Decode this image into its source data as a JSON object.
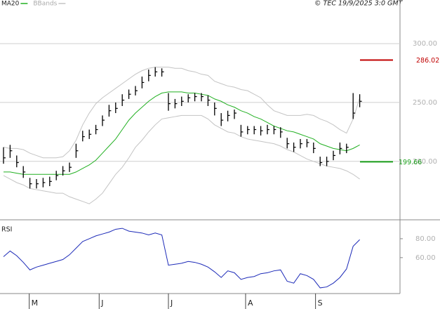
{
  "chart_data": [
    {
      "type": "ohlc",
      "copyright": "© TEC 19/9/2025 3:0 GMT",
      "ylim": [
        151,
        337
      ],
      "yticks": [
        {
          "value": 200,
          "label": "200.00"
        },
        {
          "value": 250,
          "label": "250.00"
        },
        {
          "value": 300,
          "label": "300.00"
        }
      ],
      "grid": true,
      "bar_color": "#000000",
      "high": [
        212,
        214,
        205,
        196,
        186,
        185,
        186,
        187,
        192,
        196,
        199,
        215,
        226,
        227,
        231,
        239,
        248,
        250,
        257,
        261,
        264,
        272,
        278,
        280,
        279,
        258,
        253,
        255,
        257,
        258,
        258,
        256,
        250,
        241,
        243,
        244,
        231,
        230,
        230,
        230,
        231,
        230,
        229,
        220,
        216,
        219,
        219,
        216,
        204,
        204,
        209,
        216,
        215,
        258,
        257
      ],
      "low": [
        198,
        203,
        195,
        186,
        177,
        177,
        178,
        179,
        184,
        188,
        191,
        203,
        217,
        219,
        223,
        230,
        238,
        241,
        247,
        253,
        256,
        262,
        268,
        272,
        272,
        243,
        245,
        247,
        250,
        251,
        251,
        247,
        239,
        230,
        234,
        236,
        221,
        223,
        223,
        222,
        223,
        223,
        220,
        211,
        208,
        211,
        212,
        207,
        196,
        196,
        201,
        206,
        207,
        236,
        246
      ],
      "close": [
        203,
        209,
        199,
        191,
        181,
        181,
        182,
        183,
        188,
        192,
        195,
        209,
        221,
        223,
        227,
        235,
        243,
        245,
        252,
        257,
        260,
        267,
        273,
        276,
        276,
        249,
        249,
        251,
        254,
        255,
        255,
        252,
        245,
        235,
        239,
        241,
        225,
        227,
        227,
        226,
        227,
        227,
        225,
        215,
        212,
        215,
        216,
        211,
        199,
        200,
        205,
        211,
        212,
        241,
        251
      ],
      "series": [
        {
          "name": "MA20",
          "color": "#22b022",
          "values": [
            191,
            191,
            190,
            189,
            189,
            189,
            189,
            189,
            189,
            189,
            189,
            191,
            194,
            197,
            201,
            207,
            213,
            219,
            227,
            235,
            241,
            246,
            251,
            255,
            258,
            259,
            259,
            259,
            258,
            258,
            257,
            256,
            253,
            251,
            248,
            246,
            243,
            241,
            238,
            236,
            233,
            230,
            228,
            226,
            225,
            223,
            221,
            219,
            215,
            213,
            211,
            210,
            209,
            211,
            214
          ]
        },
        {
          "name": "BBands",
          "color": "#c4c4c4",
          "upper": [
            212,
            211,
            211,
            210,
            207,
            205,
            203,
            203,
            203,
            204,
            209,
            218,
            231,
            241,
            249,
            254,
            258,
            262,
            266,
            270,
            274,
            277,
            279,
            280,
            280,
            280,
            279,
            279,
            277,
            276,
            274,
            273,
            268,
            266,
            264,
            263,
            261,
            260,
            257,
            254,
            248,
            243,
            241,
            239,
            239,
            239,
            240,
            239,
            236,
            234,
            231,
            227,
            224,
            236,
            254
          ],
          "lower": [
            188,
            185,
            182,
            180,
            177,
            176,
            175,
            174,
            173,
            173,
            170,
            168,
            166,
            164,
            168,
            173,
            181,
            189,
            195,
            203,
            212,
            218,
            225,
            231,
            236,
            237,
            238,
            239,
            239,
            239,
            239,
            236,
            231,
            228,
            225,
            224,
            221,
            219,
            218,
            217,
            216,
            215,
            213,
            210,
            208,
            205,
            202,
            200,
            198,
            196,
            195,
            194,
            192,
            189,
            185
          ]
        }
      ],
      "reference_lines": [
        {
          "value": 286.02,
          "label": "286.02",
          "color": "#c00000"
        },
        {
          "value": 199.66,
          "label": "199.66",
          "color": "#1a9e1a"
        }
      ]
    },
    {
      "type": "line",
      "title": "RSI",
      "ylim": [
        22,
        98.5
      ],
      "yticks": [
        {
          "value": 60,
          "label": "60.00"
        },
        {
          "value": 80,
          "label": "80.00"
        }
      ],
      "color": "#1c2ab8",
      "values": [
        61,
        67,
        62,
        55,
        47,
        50,
        52,
        54,
        56,
        58,
        63,
        70,
        77,
        80,
        83,
        85,
        87,
        90,
        91,
        88,
        87,
        86,
        84,
        86,
        84,
        52,
        53,
        54,
        56,
        55,
        53,
        50,
        45,
        39,
        46,
        44,
        37,
        39,
        40,
        43,
        44,
        46,
        47,
        35,
        33,
        43,
        41,
        37,
        28,
        29,
        33,
        39,
        48,
        72,
        79
      ],
      "xticks": [
        {
          "value": 3.9,
          "label": "M"
        },
        {
          "value": 14.5,
          "label": "J"
        },
        {
          "value": 25,
          "label": "J"
        },
        {
          "value": 36.7,
          "label": "A"
        },
        {
          "value": 47.3,
          "label": "S"
        }
      ]
    }
  ]
}
